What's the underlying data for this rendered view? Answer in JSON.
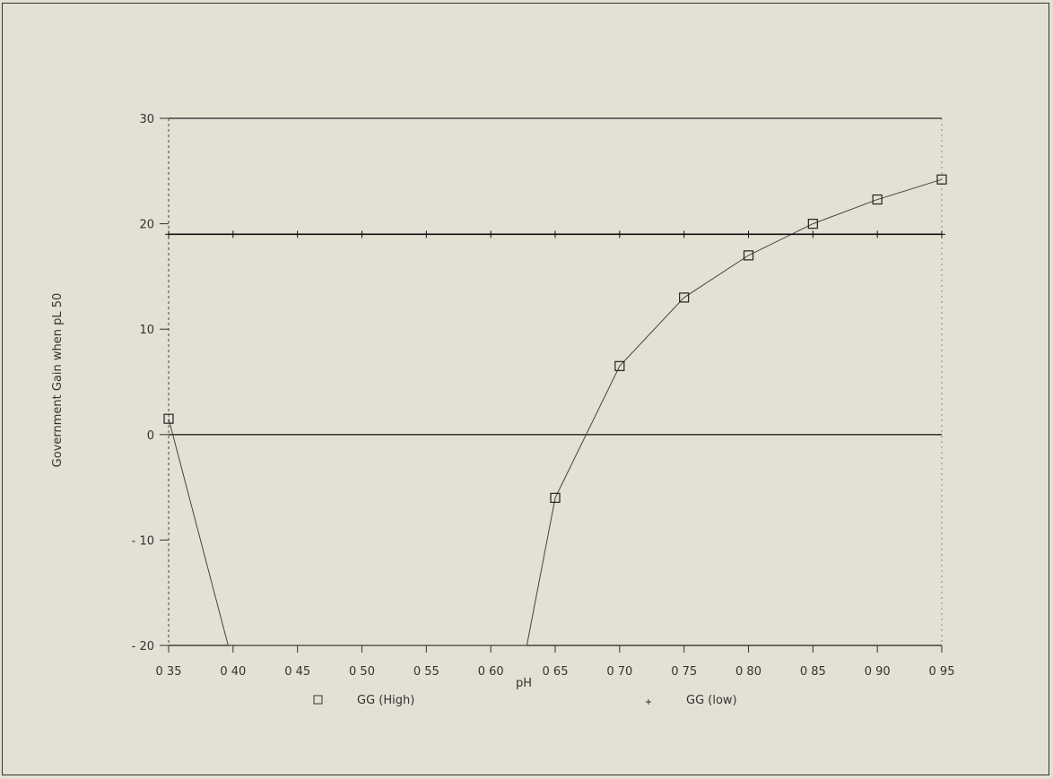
{
  "chart_data": {
    "type": "line",
    "title": "",
    "xlabel": "pH",
    "ylabel": "Government Gain when pL 50",
    "xlim": [
      0.35,
      0.95
    ],
    "ylim": [
      -20,
      30
    ],
    "x_ticks": [
      "0 35",
      "0 40",
      "0 45",
      "0 50",
      "0 55",
      "0 60",
      "0 65",
      "0 70",
      "0 75",
      "0 80",
      "0 85",
      "0 90",
      "0 95"
    ],
    "x_tick_values": [
      0.35,
      0.4,
      0.45,
      0.5,
      0.55,
      0.6,
      0.65,
      0.7,
      0.75,
      0.8,
      0.85,
      0.9,
      0.95
    ],
    "y_ticks": [
      "30",
      "20",
      "10",
      "0",
      "- 10",
      "- 20"
    ],
    "y_tick_values": [
      30,
      20,
      10,
      0,
      -10,
      -20
    ],
    "grid": "horizontal",
    "legend_position": "bottom",
    "series": [
      {
        "name": "GG (High)",
        "marker": "square",
        "x": [
          0.35,
          0.3962,
          0.628,
          0.65,
          0.7,
          0.75,
          0.8,
          0.85,
          0.9,
          0.95
        ],
        "y": [
          1.5,
          -20,
          -20,
          -6,
          6.5,
          13,
          17,
          20,
          22.3,
          24.2
        ]
      },
      {
        "name": "GG (low)",
        "marker": "plus",
        "x": [
          0.35,
          0.95
        ],
        "y": [
          19,
          19
        ]
      }
    ]
  }
}
